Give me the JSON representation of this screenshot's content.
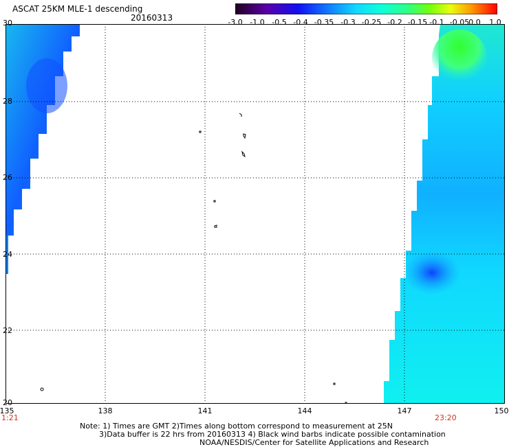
{
  "header": {
    "title": "ASCAT 25KM MLE-1 descending",
    "date": "20160313"
  },
  "colorbar": {
    "labels": [
      "-3.0",
      "-1.0",
      "-0.5",
      "-0.4",
      "-0.35",
      "-0.3",
      "-0.25",
      "-0.2",
      "-0.15",
      "-0.1",
      "-0.05",
      "0.0",
      "1.0"
    ],
    "colors": [
      "#2a0030",
      "#6a00b0",
      "#1a20f0",
      "#1060ff",
      "#1a9cff",
      "#10dcff",
      "#10ffe0",
      "#40ff80",
      "#80ff20",
      "#e0ff20",
      "#ffc000",
      "#ff6000",
      "#ff1010"
    ]
  },
  "axes": {
    "y_labels": [
      "30",
      "28",
      "26",
      "24",
      "22",
      "20"
    ],
    "x_labels": [
      "135",
      "138",
      "141",
      "144",
      "147",
      "150"
    ]
  },
  "times": {
    "left": "1:21",
    "right": "23:20"
  },
  "notes": {
    "line1": "Note: 1) Times are GMT 2)Times along bottom correspond to measurement at 25N",
    "line2": "3)Data buffer is 22 hrs from 20160313 4) Black wind barbs indicate possible contamination",
    "line3": "NOAA/NESDIS/Center for Satellite Applications and Research"
  }
}
